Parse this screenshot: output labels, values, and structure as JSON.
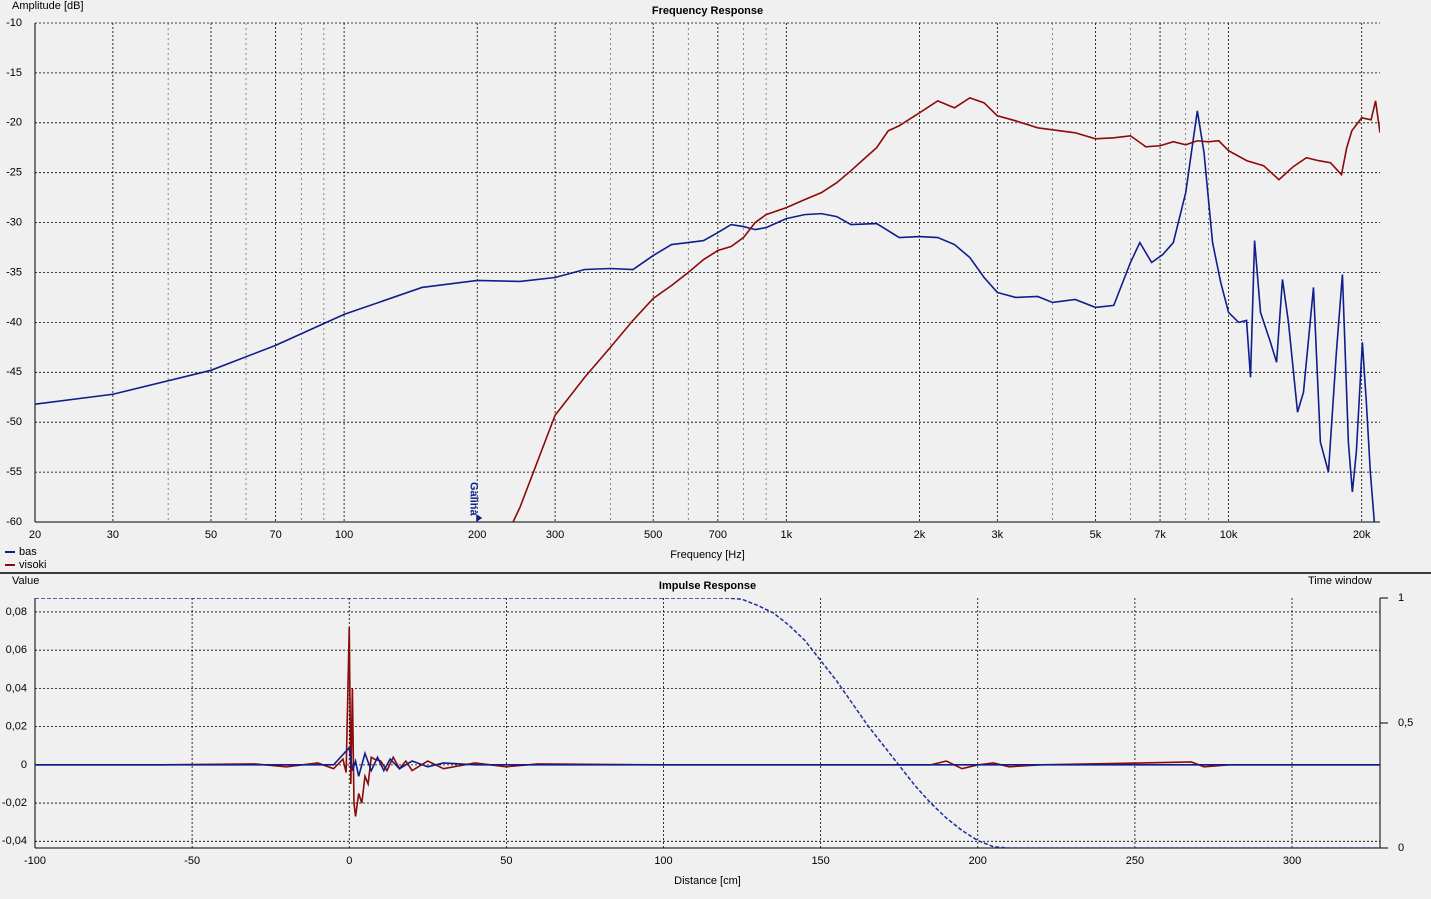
{
  "chart_data": [
    {
      "type": "line",
      "title": "Frequency Response",
      "x_label": "Frequency [Hz]",
      "y_label": "Amplitude [dB]",
      "x_log": true,
      "grid": true,
      "legend": "bottom-left",
      "xlim": [
        20,
        22000
      ],
      "ylim": [
        -60,
        -10
      ],
      "xticks": [
        20,
        30,
        50,
        70,
        100,
        200,
        300,
        500,
        700,
        {
          "value": 1000,
          "label": "1k"
        },
        {
          "value": 2000,
          "label": "2k"
        },
        {
          "value": 3000,
          "label": "3k"
        },
        {
          "value": 5000,
          "label": "5k"
        },
        {
          "value": 7000,
          "label": "7k"
        },
        {
          "value": 10000,
          "label": "10k"
        },
        {
          "value": 20000,
          "label": "20k"
        }
      ],
      "xticks_minor": [
        40,
        60,
        80,
        90,
        400,
        600,
        800,
        900,
        4000,
        6000,
        8000,
        9000
      ],
      "yticks": [
        -10,
        -15,
        -20,
        -25,
        -30,
        -35,
        -40,
        -45,
        -50,
        -55,
        -60
      ],
      "annotation": {
        "text": "Galina",
        "x": 200
      },
      "series": [
        {
          "name": "bas",
          "color": "#101e8c",
          "x": [
            20,
            30,
            50,
            70,
            100,
            150,
            200,
            250,
            300,
            350,
            400,
            450,
            500,
            550,
            600,
            650,
            700,
            750,
            800,
            850,
            900,
            1000,
            1100,
            1200,
            1300,
            1400,
            1600,
            1800,
            2000,
            2200,
            2400,
            2600,
            2800,
            3000,
            3300,
            3700,
            4000,
            4500,
            5000,
            5500,
            6000,
            6300,
            6700,
            7100,
            7500,
            8000,
            8300,
            8500,
            8800,
            9200,
            9600,
            10000,
            10540,
            10980,
            11210,
            11450,
            11810,
            12440,
            12840,
            13240,
            13660,
            14320,
            14770,
            15560,
            16130,
            16820,
            17530,
            18090,
            18660,
            19050,
            19450,
            20070,
            20490,
            20920,
            21360
          ],
          "values": [
            -48.2,
            -47.2,
            -44.8,
            -42.3,
            -39.2,
            -36.5,
            -35.8,
            -35.9,
            -35.5,
            -34.7,
            -34.6,
            -34.7,
            -33.3,
            -32.2,
            -32,
            -31.8,
            -31,
            -30.2,
            -30.4,
            -30.7,
            -30.5,
            -29.6,
            -29.2,
            -29.1,
            -29.4,
            -30.2,
            -30.1,
            -31.5,
            -31.4,
            -31.5,
            -32.2,
            -33.5,
            -35.5,
            -37,
            -37.5,
            -37.4,
            -38,
            -37.7,
            -38.5,
            -38.3,
            -34,
            -32,
            -34,
            -33.2,
            -32,
            -27,
            -22,
            -18.8,
            -23,
            -32,
            -36,
            -39,
            -40,
            -39.8,
            -45.5,
            -31.8,
            -39,
            -42,
            -44,
            -35.7,
            -40,
            -49,
            -47,
            -36.5,
            -52,
            -55,
            -43,
            -35.2,
            -52,
            -57,
            -53,
            -42,
            -48,
            -55,
            -60
          ]
        },
        {
          "name": "visoki",
          "color": "#8b0a0a",
          "x": [
            241,
            250,
            300,
            350,
            400,
            450,
            500,
            550,
            600,
            650,
            700,
            750,
            800,
            850,
            900,
            1000,
            1100,
            1200,
            1300,
            1400,
            1500,
            1600,
            1700,
            1800,
            2000,
            2200,
            2400,
            2600,
            2800,
            3000,
            3300,
            3700,
            4000,
            4500,
            5000,
            5500,
            6000,
            6500,
            7000,
            7500,
            8000,
            8500,
            9000,
            9500,
            10000,
            11000,
            12000,
            13000,
            14000,
            15000,
            16000,
            17000,
            18000,
            18500,
            19000,
            20000,
            21000,
            21500,
            22000
          ],
          "values": [
            -60,
            -58.5,
            -49.3,
            -45.5,
            -42.5,
            -39.8,
            -37.6,
            -36.3,
            -35,
            -33.7,
            -32.8,
            -32.4,
            -31.5,
            -30,
            -29.2,
            -28.5,
            -27.7,
            -27,
            -26,
            -24.8,
            -23.6,
            -22.5,
            -20.8,
            -20.3,
            -19,
            -17.8,
            -18.5,
            -17.5,
            -18,
            -19.3,
            -19.8,
            -20.5,
            -20.7,
            -21,
            -21.6,
            -21.5,
            -21.3,
            -22.4,
            -22.3,
            -21.9,
            -22.2,
            -21.8,
            -21.9,
            -21.8,
            -22.8,
            -23.8,
            -24.3,
            -25.7,
            -24.4,
            -23.5,
            -23.8,
            -24,
            -25.2,
            -22.5,
            -20.8,
            -19.5,
            -19.7,
            -17.8,
            -21
          ]
        }
      ]
    },
    {
      "type": "line",
      "title": "Impulse Response",
      "x_label": "Distance [cm]",
      "y_label": "Value",
      "y2_label": "Time window",
      "x_log": false,
      "grid": true,
      "xlim": [
        -100,
        328
      ],
      "ylim": [
        -0.0435,
        0.0873
      ],
      "y2lim": [
        0,
        1
      ],
      "xticks": [
        -100,
        -50,
        0,
        50,
        100,
        150,
        200,
        250,
        300
      ],
      "yticks": [
        {
          "value": 0.08,
          "label": "0,08"
        },
        {
          "value": 0.06,
          "label": "0,06"
        },
        {
          "value": 0.04,
          "label": "0,04"
        },
        {
          "value": 0.02,
          "label": "0,02"
        },
        0,
        {
          "value": -0.02,
          "label": "-0,02"
        },
        {
          "value": -0.04,
          "label": "-0,04"
        }
      ],
      "y2ticks": [
        1,
        {
          "value": 0.5,
          "label": "0,5"
        },
        0
      ],
      "series": [
        {
          "color": "#1f2f9a",
          "axis": "y2",
          "dashed": true,
          "x": [
            -100,
            120,
            125,
            130,
            135,
            140,
            145,
            150,
            155,
            160,
            165,
            170,
            175,
            180,
            185,
            190,
            195,
            200,
            205,
            210,
            328
          ],
          "values": [
            1,
            1,
            0.995,
            0.97,
            0.94,
            0.89,
            0.83,
            0.75,
            0.67,
            0.58,
            0.49,
            0.41,
            0.33,
            0.25,
            0.18,
            0.12,
            0.07,
            0.03,
            0.005,
            0,
            0
          ]
        },
        {
          "color": "#8b0a0a",
          "x": [
            -100,
            -60,
            -30,
            -20,
            -10,
            -5,
            -2,
            -1,
            0,
            0.5,
            1,
            1.5,
            2,
            3,
            4,
            5,
            6,
            7,
            8,
            10,
            12,
            14,
            16,
            18,
            20,
            25,
            30,
            40,
            50,
            60,
            100,
            185,
            190,
            195,
            200,
            205,
            210,
            220,
            268,
            272,
            280,
            328
          ],
          "values": [
            0,
            0,
            0.0005,
            -0.001,
            0.001,
            -0.002,
            0.003,
            -0.004,
            0.072,
            -0.01,
            0.04,
            -0.02,
            -0.027,
            -0.015,
            -0.02,
            -0.006,
            -0.01,
            0.004,
            0.003,
            0.002,
            -0.003,
            0.004,
            -0.002,
            0.002,
            -0.003,
            0.002,
            -0.002,
            0.001,
            -0.001,
            0.0005,
            0,
            0,
            0.002,
            -0.002,
            0,
            0.001,
            -0.001,
            0,
            0.0015,
            -0.001,
            0,
            0
          ]
        },
        {
          "color": "#101e8c",
          "x": [
            -100,
            -5,
            0,
            1,
            2,
            3,
            5,
            7,
            9,
            11,
            13,
            16,
            20,
            25,
            30,
            40,
            328
          ],
          "values": [
            0,
            0,
            0.009,
            -0.003,
            0.002,
            -0.006,
            0.006,
            -0.003,
            0.004,
            -0.003,
            0.003,
            -0.002,
            0.002,
            -0.001,
            0.001,
            0,
            0
          ]
        }
      ]
    }
  ]
}
